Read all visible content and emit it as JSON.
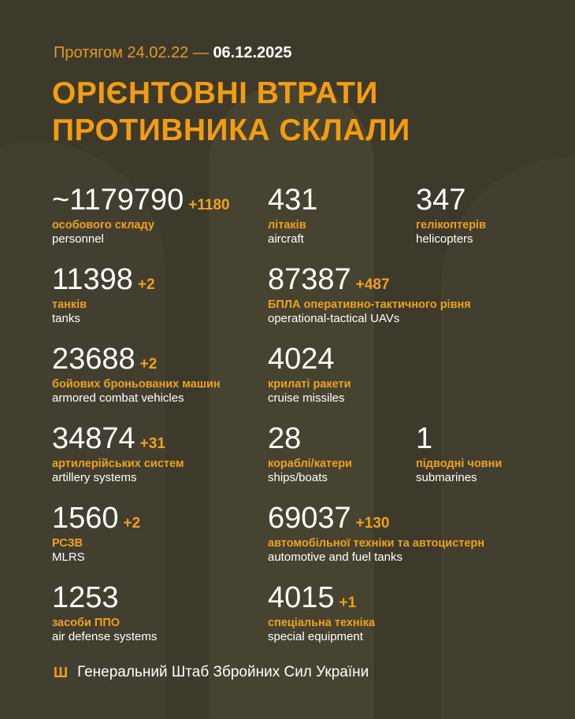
{
  "header": {
    "period_prefix": "Протягом 24.02.22 —",
    "period_end": "06.12.2025",
    "title_line1": "ОРІЄНТОВНІ ВТРАТИ",
    "title_line2": "ПРОТИВНИКА СКЛАЛИ"
  },
  "items": [
    {
      "value": "~1179790",
      "delta": "+1180",
      "ua": "особового складу",
      "en": "personnel"
    },
    {
      "value": "431",
      "delta": "",
      "ua": "літаків",
      "en": "aircraft"
    },
    {
      "value": "347",
      "delta": "",
      "ua": "гелікоптерів",
      "en": "helicopters"
    },
    {
      "value": "11398",
      "delta": "+2",
      "ua": "танків",
      "en": "tanks"
    },
    {
      "value": "87387",
      "delta": "+487",
      "ua": "БПЛА оперативно-тактичного рівня",
      "en": "operational-tactical UAVs"
    },
    {
      "value": "23688",
      "delta": "+2",
      "ua": "бойових броньованих машин",
      "en": "armored combat vehicles"
    },
    {
      "value": "4024",
      "delta": "",
      "ua": "крилаті ракети",
      "en": "cruise missiles"
    },
    {
      "value": "34874",
      "delta": "+31",
      "ua": "артилерійських систем",
      "en": "artillery systems"
    },
    {
      "value": "28",
      "delta": "",
      "ua": "кораблі/катери",
      "en": "ships/boats"
    },
    {
      "value": "1",
      "delta": "",
      "ua": "підводні човни",
      "en": "submarines"
    },
    {
      "value": "1560",
      "delta": "+2",
      "ua": "РСЗВ",
      "en": "MLRS"
    },
    {
      "value": "69037",
      "delta": "+130",
      "ua": "автомобільної техніки та автоцистерн",
      "en": "automotive and fuel tanks"
    },
    {
      "value": "1253",
      "delta": "",
      "ua": "засоби ППО",
      "en": "air defense systems"
    },
    {
      "value": "4015",
      "delta": "+1",
      "ua": "спеціальна техніка",
      "en": "special equipment"
    }
  ],
  "footer": {
    "icon": "trident-icon",
    "text": "Генеральний Штаб Збройних Сил України"
  },
  "colors": {
    "background": "#3d3a2c",
    "accent": "#f39c12",
    "text": "#ffffff"
  }
}
